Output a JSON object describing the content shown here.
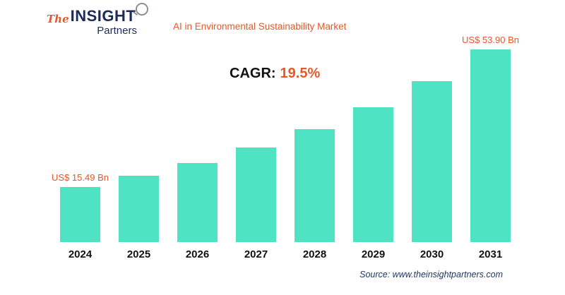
{
  "logo": {
    "the": "The",
    "insight": "INSIGHT",
    "partners": "Partners"
  },
  "header": {
    "title": "AI in Environmental Sustainability Market"
  },
  "cagr": {
    "label": "CAGR:",
    "value": "19.5%"
  },
  "chart_data": {
    "type": "bar",
    "title": "AI in Environmental Sustainability Market",
    "categories": [
      "2024",
      "2025",
      "2026",
      "2027",
      "2028",
      "2029",
      "2030",
      "2031"
    ],
    "values": [
      15.49,
      18.51,
      22.12,
      26.43,
      31.59,
      37.75,
      45.11,
      53.9
    ],
    "first_bar_label": "US$ 15.49 Bn",
    "last_bar_label": "US$ 53.90 Bn",
    "bar_color": "#4de3c3",
    "xlabel": "",
    "ylabel": "",
    "ylim": [
      0,
      55
    ],
    "grid": false,
    "legend": false
  },
  "footer": {
    "source": "Source: www.theinsightpartners.com"
  },
  "colors": {
    "accent_orange": "#e4582d",
    "navy": "#1c2b5a",
    "bar": "#4de3c3"
  }
}
